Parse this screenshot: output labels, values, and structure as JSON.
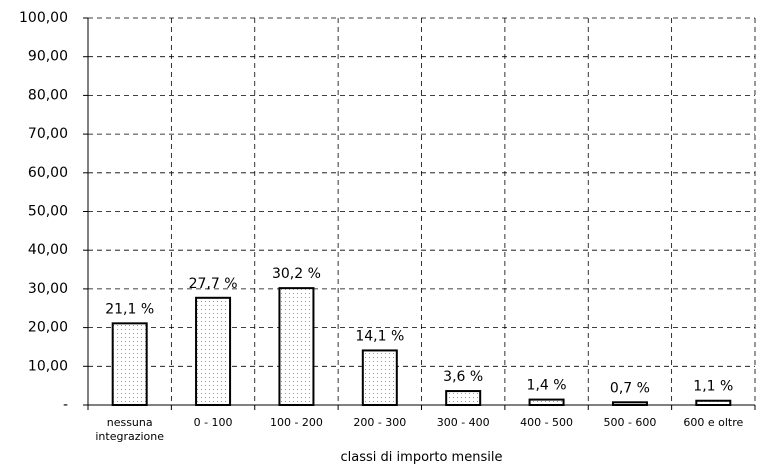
{
  "chart_data": {
    "type": "bar",
    "x_label": "classi di importo mensile",
    "categories": [
      "nessuna integrazione",
      "0 - 100",
      "100 - 200",
      "200 - 300",
      "300 - 400",
      "400 - 500",
      "500 - 600",
      "600 e oltre"
    ],
    "values": [
      21.1,
      27.7,
      30.2,
      14.1,
      3.6,
      1.4,
      0.7,
      1.1
    ],
    "value_labels": [
      "21,1 %",
      "27,7 %",
      "30,2 %",
      "14,1 %",
      "3,6 %",
      "1,4 %",
      "0,7 %",
      "1,1 %"
    ],
    "color": "#000000",
    "ylim": [
      0,
      100
    ],
    "yticks": [
      {
        "value": 0,
        "label": "-"
      },
      {
        "value": 10,
        "label": "10,00"
      },
      {
        "value": 20,
        "label": "20,00"
      },
      {
        "value": 30,
        "label": "30,00"
      },
      {
        "value": 40,
        "label": "40,00"
      },
      {
        "value": 50,
        "label": "50,00"
      },
      {
        "value": 60,
        "label": "60,00"
      },
      {
        "value": 70,
        "label": "70,00"
      },
      {
        "value": 80,
        "label": "80,00"
      },
      {
        "value": 90,
        "label": "90,00"
      },
      {
        "value": 100,
        "label": "100,00"
      }
    ],
    "grid": true
  }
}
